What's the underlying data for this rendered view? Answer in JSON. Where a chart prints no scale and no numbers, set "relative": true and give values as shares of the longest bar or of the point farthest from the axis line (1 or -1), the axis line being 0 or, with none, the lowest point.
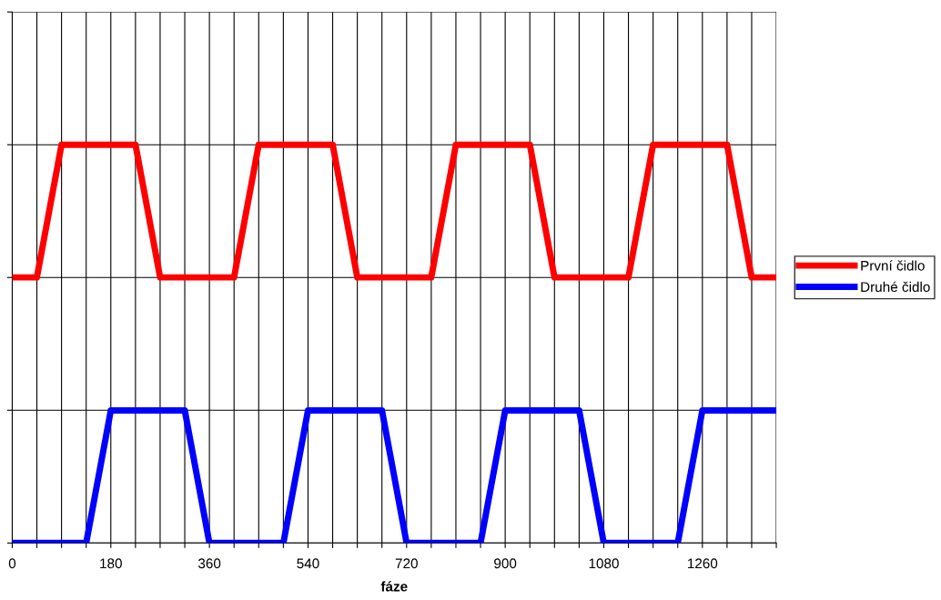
{
  "chart_data": {
    "type": "line",
    "xlabel": "fáze",
    "relative": true,
    "grid": true,
    "legend": "right",
    "marker": "none",
    "line_style": "solid",
    "xlim": [
      0,
      1395
    ],
    "xticks": [
      0,
      {
        "value": 45,
        "label": null
      },
      {
        "value": 90,
        "label": null
      },
      {
        "value": 135,
        "label": null
      },
      180,
      {
        "value": 225,
        "label": null
      },
      {
        "value": 270,
        "label": null
      },
      {
        "value": 315,
        "label": null
      },
      360,
      {
        "value": 405,
        "label": null
      },
      {
        "value": 450,
        "label": null
      },
      {
        "value": 495,
        "label": null
      },
      540,
      {
        "value": 585,
        "label": null
      },
      {
        "value": 630,
        "label": null
      },
      {
        "value": 675,
        "label": null
      },
      720,
      {
        "value": 765,
        "label": null
      },
      {
        "value": 810,
        "label": null
      },
      {
        "value": 855,
        "label": null
      },
      900,
      {
        "value": 945,
        "label": null
      },
      {
        "value": 990,
        "label": null
      },
      {
        "value": 1035,
        "label": null
      },
      1080,
      {
        "value": 1125,
        "label": null
      },
      {
        "value": 1170,
        "label": null
      },
      {
        "value": 1215,
        "label": null
      },
      1260,
      {
        "value": 1305,
        "label": null
      },
      {
        "value": 1350,
        "label": null
      },
      {
        "value": 1395,
        "label": null
      }
    ],
    "series": [
      {
        "name": "První čidlo",
        "color": "#ff0000",
        "x": [
          0,
          45,
          90,
          225,
          270,
          405,
          450,
          585,
          630,
          765,
          810,
          945,
          990,
          1125,
          1170,
          1305,
          1350,
          1395
        ],
        "values": [
          0.667,
          0.667,
          1,
          1,
          0.667,
          0.667,
          1,
          1,
          0.667,
          0.667,
          1,
          1,
          0.667,
          0.667,
          1,
          1,
          0.667,
          0.667
        ]
      },
      {
        "name": "Druhé čidlo",
        "color": "#0000ff",
        "x": [
          0,
          135,
          180,
          315,
          360,
          495,
          540,
          675,
          720,
          855,
          900,
          1035,
          1080,
          1215,
          1260,
          1395
        ],
        "values": [
          0,
          0,
          0.333,
          0.333,
          0,
          0,
          0.333,
          0.333,
          0,
          0,
          0.333,
          0.333,
          0,
          0,
          0.333,
          0.333
        ]
      }
    ]
  }
}
